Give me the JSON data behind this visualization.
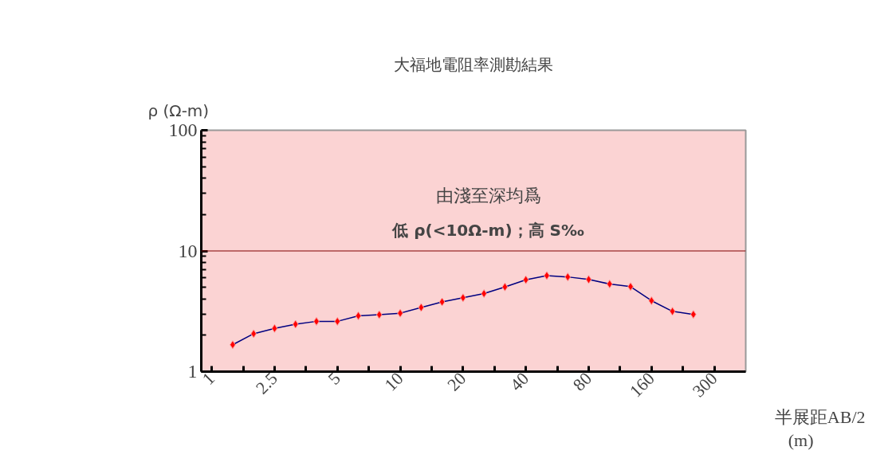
{
  "chart_data": {
    "type": "line",
    "title": "大福地電阻率測勘結果",
    "ylabel": "ρ (Ω-m)",
    "xlabel": "半展距AB/2\n(m)",
    "annotations": [
      "由淺至深均爲",
      "低 ρ(<10Ω-m)；高 S‰"
    ],
    "categories": [
      "1",
      null,
      null,
      "2.5",
      null,
      null,
      "5",
      null,
      null,
      "10",
      null,
      null,
      "20",
      null,
      null,
      "40",
      null,
      null,
      "80",
      null,
      null,
      "160",
      null,
      null,
      "300",
      null
    ],
    "series": [
      {
        "color": "#ff0000",
        "values": [
          null,
          1.67,
          2.06,
          2.28,
          2.47,
          2.61,
          2.61,
          2.9,
          2.96,
          3.05,
          3.4,
          3.78,
          4.09,
          4.43,
          5.03,
          5.77,
          6.25,
          6.09,
          5.8,
          5.32,
          5.06,
          3.87,
          3.16,
          2.98,
          null,
          null
        ]
      }
    ],
    "ylim": [
      1,
      100
    ],
    "yticks": [
      1,
      10,
      100
    ],
    "log": true,
    "ref_lines": [
      {
        "axis": "y",
        "value": 10,
        "color": "#800000"
      }
    ],
    "marker": "diamond",
    "line_style": "solid"
  }
}
